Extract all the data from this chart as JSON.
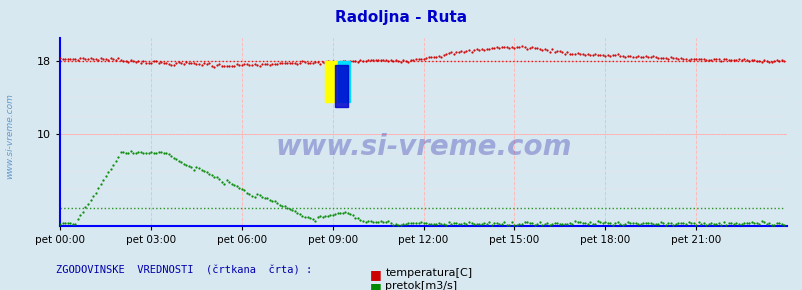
{
  "title": "Radoljna - Ruta",
  "title_color": "#0000cc",
  "bg_color": "#d8e8f0",
  "axis_color": "#0000ff",
  "grid_color_red": "#ffaaaa",
  "grid_color_pink": "#ffdddd",
  "yticks": [
    10,
    18
  ],
  "ylim": [
    0,
    20.5
  ],
  "xlim": [
    0,
    288
  ],
  "xtick_labels": [
    "pet 00:00",
    "pet 03:00",
    "pet 06:00",
    "pet 09:00",
    "pet 12:00",
    "pet 15:00",
    "pet 18:00",
    "pet 21:00"
  ],
  "xtick_positions": [
    0,
    36,
    72,
    108,
    144,
    180,
    216,
    252
  ],
  "temp_color": "#cc0000",
  "flow_color": "#008800",
  "watermark": "www.si-vreme.com",
  "watermark_color": "#1a1aaa",
  "legend_text": "ZGODOVINSKE  VREDNOSTI  (črtkana  črta) :",
  "legend_temp": "temperatura[C]",
  "legend_flow": "pretok[m3/s]",
  "ylabel_text": "www.si-vreme.com",
  "ylabel_color": "#6699cc",
  "logo_yellow": "#ffff00",
  "logo_cyan": "#00ddff",
  "logo_blue": "#0000cc"
}
